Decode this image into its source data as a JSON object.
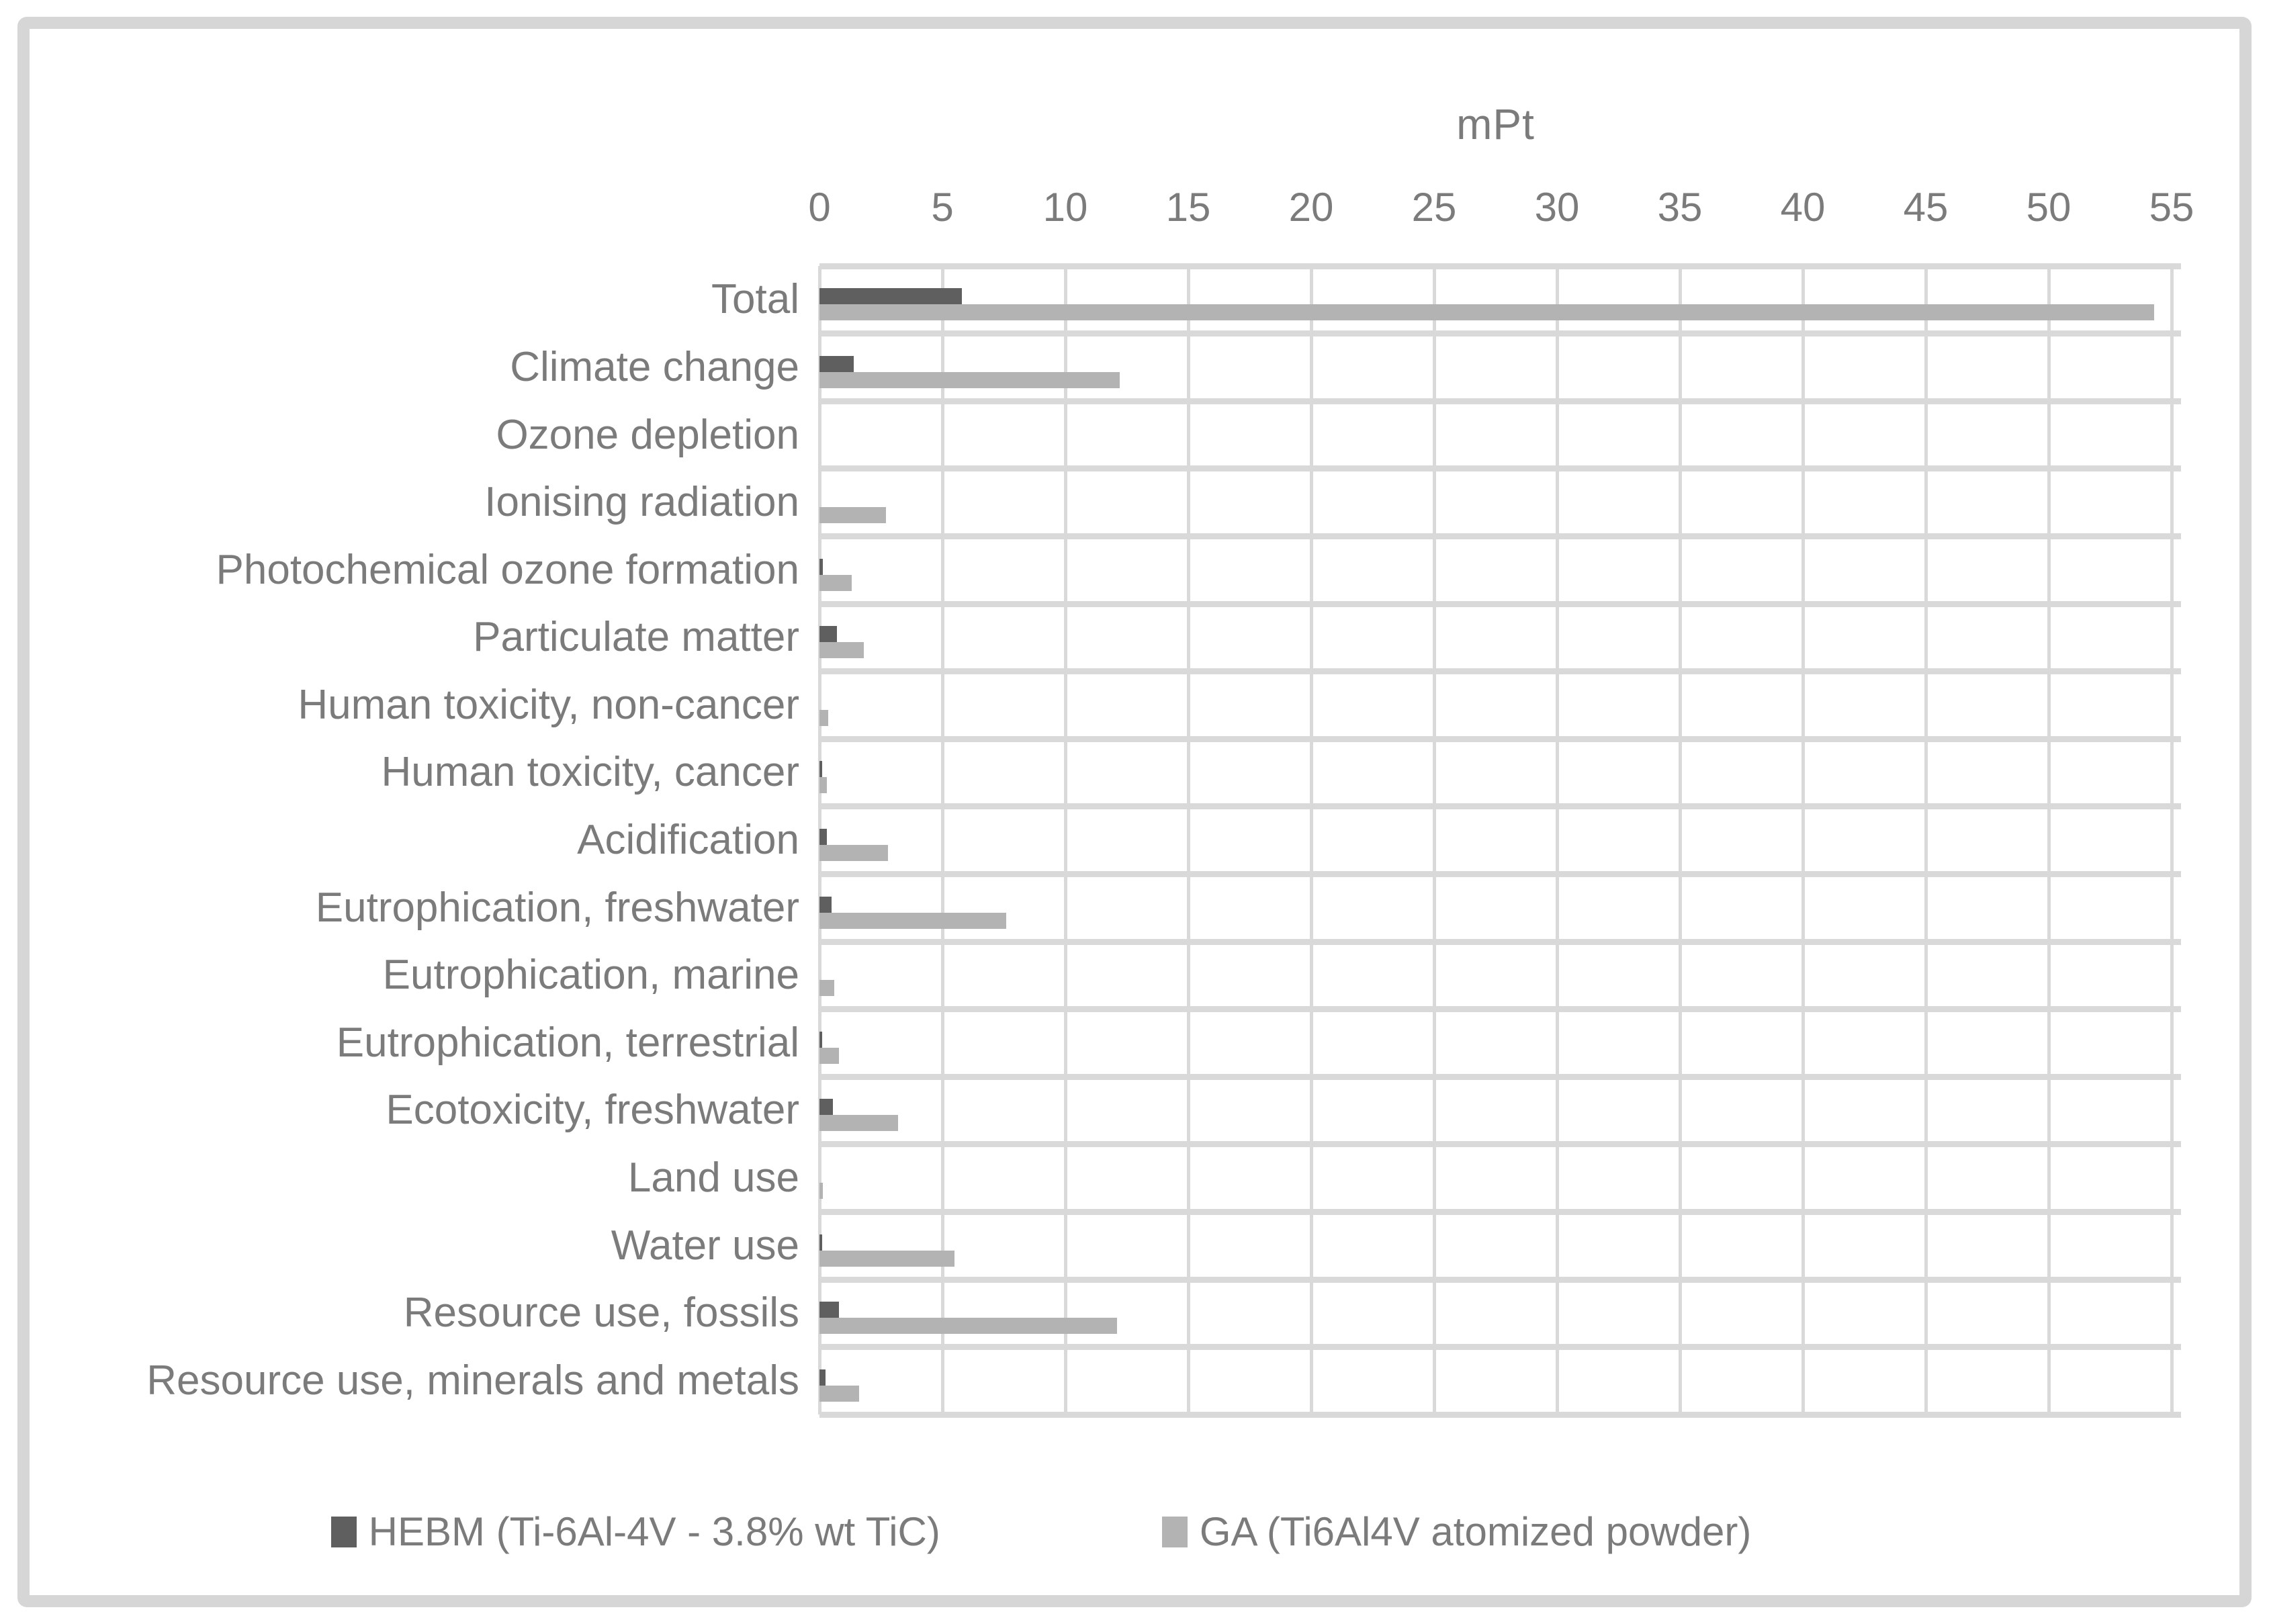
{
  "chart_data": {
    "type": "bar",
    "orientation": "horizontal",
    "title": "mPt",
    "categories": [
      "Total",
      "Climate change",
      "Ozone depletion",
      "Ionising radiation",
      "Photochemical ozone formation",
      "Particulate matter",
      "Human toxicity, non-cancer",
      "Human toxicity, cancer",
      "Acidification",
      "Eutrophication, freshwater",
      "Eutrophication, marine",
      "Eutrophication, terrestrial",
      "Ecotoxicity, freshwater",
      "Land use",
      "Water use",
      "Resource use, fossils",
      "Resource use, minerals and metals"
    ],
    "series": [
      {
        "name": "HEBM (Ti-6Al-4V - 3.8% wt TiC)",
        "color": "#5f5f5f",
        "values": [
          5.8,
          1.4,
          0,
          0,
          0.15,
          0.7,
          0,
          0.1,
          0.3,
          0.5,
          0,
          0.1,
          0.55,
          0,
          0.1,
          0.8,
          0.25
        ]
      },
      {
        "name": "GA (Ti6Al4V atomized powder)",
        "color": "#b3b3b3",
        "values": [
          54.3,
          12.2,
          0,
          2.7,
          1.3,
          1.8,
          0.35,
          0.3,
          2.8,
          7.6,
          0.6,
          0.8,
          3.2,
          0.15,
          5.5,
          12.1,
          1.6
        ]
      }
    ],
    "xlabel": "mPt",
    "ylabel": "",
    "xlim": [
      0,
      55
    ],
    "x_tick_step": 5,
    "x_tick_labels": [
      "0",
      "5",
      "10",
      "15",
      "20",
      "25",
      "30",
      "35",
      "40",
      "45",
      "50",
      "55"
    ],
    "grid": true,
    "legend_position": "bottom"
  },
  "colors": {
    "series_hebm": "#5f5f5f",
    "series_ga": "#b3b3b3",
    "gridline": "#d9d9d9",
    "frame_border": "#d6d6d6",
    "text": "#7b7b7b",
    "background": "#ffffff"
  }
}
